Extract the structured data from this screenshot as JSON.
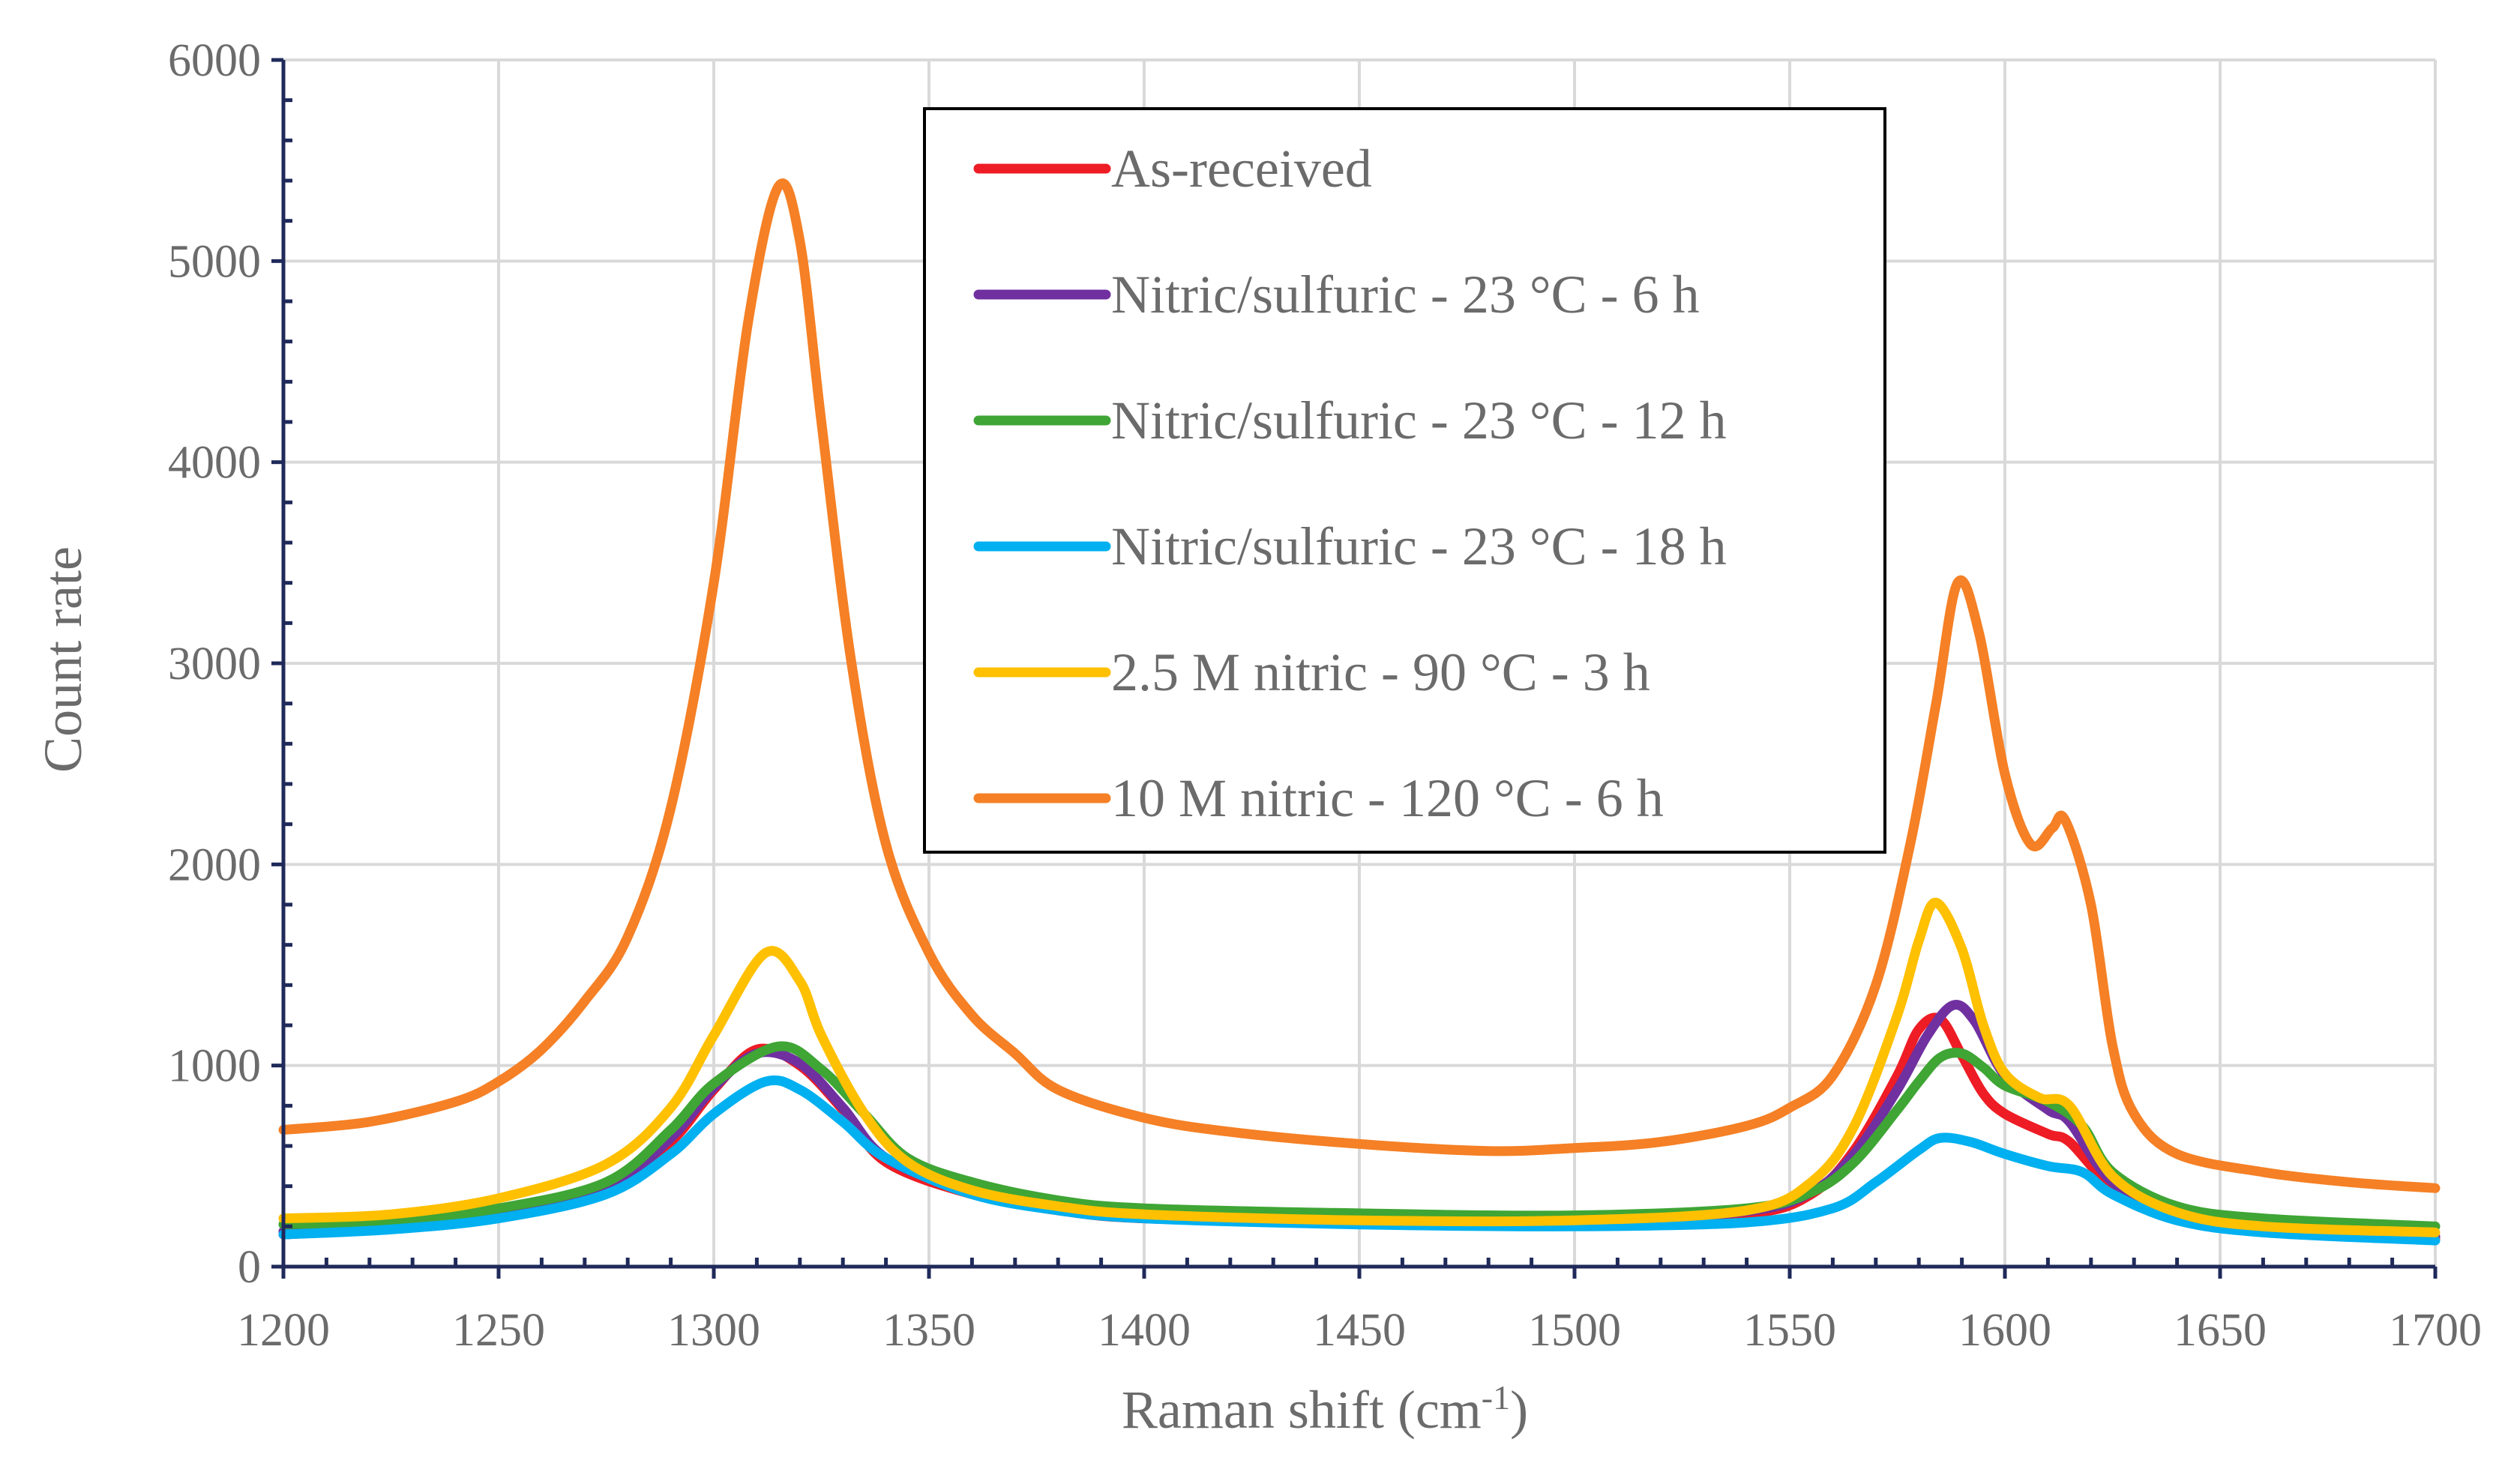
{
  "chart_data": {
    "type": "line",
    "title": "",
    "xlabel": "Raman shift (cm",
    "xlabel_sup": "-1",
    "xlabel_end": ")",
    "ylabel": "Count rate",
    "xlim": [
      1200,
      1700
    ],
    "ylim": [
      0,
      6000
    ],
    "xticks": [
      1200,
      1250,
      1300,
      1350,
      1400,
      1450,
      1500,
      1550,
      1600,
      1650,
      1700
    ],
    "yticks": [
      0,
      1000,
      2000,
      3000,
      4000,
      5000,
      6000
    ],
    "grid": true,
    "legend_position": "top-center",
    "series": [
      {
        "name": "As-received",
        "color": "#ee1c25",
        "points": [
          [
            1200,
            160
          ],
          [
            1225,
            190
          ],
          [
            1250,
            250
          ],
          [
            1275,
            380
          ],
          [
            1290,
            620
          ],
          [
            1300,
            880
          ],
          [
            1310,
            1080
          ],
          [
            1320,
            1000
          ],
          [
            1330,
            780
          ],
          [
            1340,
            520
          ],
          [
            1360,
            360
          ],
          [
            1380,
            280
          ],
          [
            1400,
            240
          ],
          [
            1450,
            220
          ],
          [
            1500,
            210
          ],
          [
            1540,
            260
          ],
          [
            1555,
            360
          ],
          [
            1565,
            580
          ],
          [
            1575,
            950
          ],
          [
            1580,
            1180
          ],
          [
            1585,
            1230
          ],
          [
            1590,
            1050
          ],
          [
            1595,
            860
          ],
          [
            1600,
            760
          ],
          [
            1610,
            660
          ],
          [
            1615,
            620
          ],
          [
            1625,
            400
          ],
          [
            1640,
            240
          ],
          [
            1660,
            180
          ],
          [
            1700,
            140
          ]
        ]
      },
      {
        "name": "Nitric/sulfuric - 23 °C - 6 h",
        "color": "#7030a0",
        "points": [
          [
            1200,
            175
          ],
          [
            1225,
            200
          ],
          [
            1250,
            260
          ],
          [
            1275,
            390
          ],
          [
            1290,
            640
          ],
          [
            1300,
            890
          ],
          [
            1310,
            1060
          ],
          [
            1320,
            1010
          ],
          [
            1330,
            790
          ],
          [
            1340,
            540
          ],
          [
            1360,
            370
          ],
          [
            1380,
            290
          ],
          [
            1400,
            245
          ],
          [
            1450,
            230
          ],
          [
            1500,
            220
          ],
          [
            1540,
            275
          ],
          [
            1555,
            370
          ],
          [
            1565,
            560
          ],
          [
            1575,
            880
          ],
          [
            1582,
            1150
          ],
          [
            1588,
            1300
          ],
          [
            1593,
            1220
          ],
          [
            1600,
            950
          ],
          [
            1610,
            780
          ],
          [
            1615,
            720
          ],
          [
            1625,
            420
          ],
          [
            1640,
            250
          ],
          [
            1660,
            190
          ],
          [
            1700,
            150
          ]
        ]
      },
      {
        "name": "Nitric/sulfuric - 23 °C - 12 h",
        "color": "#3fa535",
        "points": [
          [
            1200,
            210
          ],
          [
            1225,
            230
          ],
          [
            1250,
            290
          ],
          [
            1275,
            420
          ],
          [
            1290,
            680
          ],
          [
            1300,
            910
          ],
          [
            1315,
            1095
          ],
          [
            1325,
            980
          ],
          [
            1335,
            760
          ],
          [
            1345,
            540
          ],
          [
            1360,
            420
          ],
          [
            1380,
            330
          ],
          [
            1400,
            290
          ],
          [
            1450,
            265
          ],
          [
            1500,
            255
          ],
          [
            1540,
            290
          ],
          [
            1555,
            370
          ],
          [
            1565,
            520
          ],
          [
            1575,
            780
          ],
          [
            1580,
            920
          ],
          [
            1585,
            1040
          ],
          [
            1590,
            1060
          ],
          [
            1595,
            990
          ],
          [
            1600,
            900
          ],
          [
            1610,
            820
          ],
          [
            1618,
            700
          ],
          [
            1625,
            470
          ],
          [
            1640,
            300
          ],
          [
            1660,
            240
          ],
          [
            1700,
            200
          ]
        ]
      },
      {
        "name": "Nitric/sulfuric - 23 °C - 18 h",
        "color": "#00b0f0",
        "points": [
          [
            1200,
            160
          ],
          [
            1225,
            185
          ],
          [
            1250,
            240
          ],
          [
            1275,
            360
          ],
          [
            1290,
            560
          ],
          [
            1300,
            760
          ],
          [
            1312,
            920
          ],
          [
            1320,
            880
          ],
          [
            1330,
            720
          ],
          [
            1340,
            540
          ],
          [
            1360,
            360
          ],
          [
            1380,
            280
          ],
          [
            1400,
            240
          ],
          [
            1450,
            210
          ],
          [
            1500,
            200
          ],
          [
            1540,
            220
          ],
          [
            1560,
            290
          ],
          [
            1570,
            420
          ],
          [
            1580,
            580
          ],
          [
            1585,
            640
          ],
          [
            1592,
            620
          ],
          [
            1600,
            560
          ],
          [
            1610,
            500
          ],
          [
            1618,
            470
          ],
          [
            1625,
            360
          ],
          [
            1640,
            230
          ],
          [
            1660,
            170
          ],
          [
            1700,
            130
          ]
        ]
      },
      {
        "name": "2.5 M nitric - 90 °C - 3 h",
        "color": "#ffc000",
        "points": [
          [
            1200,
            240
          ],
          [
            1225,
            260
          ],
          [
            1250,
            340
          ],
          [
            1275,
            510
          ],
          [
            1290,
            790
          ],
          [
            1300,
            1150
          ],
          [
            1312,
            1560
          ],
          [
            1320,
            1420
          ],
          [
            1325,
            1150
          ],
          [
            1335,
            760
          ],
          [
            1345,
            520
          ],
          [
            1360,
            380
          ],
          [
            1380,
            300
          ],
          [
            1400,
            260
          ],
          [
            1450,
            230
          ],
          [
            1500,
            230
          ],
          [
            1540,
            280
          ],
          [
            1555,
            420
          ],
          [
            1565,
            700
          ],
          [
            1575,
            1250
          ],
          [
            1580,
            1620
          ],
          [
            1584,
            1810
          ],
          [
            1590,
            1580
          ],
          [
            1595,
            1200
          ],
          [
            1600,
            960
          ],
          [
            1608,
            840
          ],
          [
            1615,
            800
          ],
          [
            1625,
            450
          ],
          [
            1640,
            270
          ],
          [
            1660,
            200
          ],
          [
            1700,
            170
          ]
        ]
      },
      {
        "name": "10 M nitric - 120 °C - 6 h",
        "color": "#f58025",
        "points": [
          [
            1200,
            680
          ],
          [
            1220,
            720
          ],
          [
            1240,
            820
          ],
          [
            1250,
            920
          ],
          [
            1260,
            1080
          ],
          [
            1270,
            1320
          ],
          [
            1280,
            1640
          ],
          [
            1290,
            2280
          ],
          [
            1300,
            3400
          ],
          [
            1308,
            4700
          ],
          [
            1315,
            5370
          ],
          [
            1320,
            5100
          ],
          [
            1325,
            4200
          ],
          [
            1332,
            3000
          ],
          [
            1340,
            2100
          ],
          [
            1350,
            1560
          ],
          [
            1360,
            1250
          ],
          [
            1370,
            1060
          ],
          [
            1380,
            880
          ],
          [
            1400,
            740
          ],
          [
            1420,
            670
          ],
          [
            1450,
            610
          ],
          [
            1480,
            575
          ],
          [
            1500,
            590
          ],
          [
            1520,
            620
          ],
          [
            1540,
            700
          ],
          [
            1550,
            790
          ],
          [
            1560,
            950
          ],
          [
            1570,
            1400
          ],
          [
            1578,
            2100
          ],
          [
            1584,
            2800
          ],
          [
            1589,
            3400
          ],
          [
            1594,
            3150
          ],
          [
            1600,
            2450
          ],
          [
            1606,
            2100
          ],
          [
            1611,
            2180
          ],
          [
            1614,
            2220
          ],
          [
            1620,
            1800
          ],
          [
            1625,
            1100
          ],
          [
            1630,
            760
          ],
          [
            1640,
            560
          ],
          [
            1660,
            470
          ],
          [
            1680,
            420
          ],
          [
            1700,
            390
          ]
        ]
      }
    ]
  }
}
